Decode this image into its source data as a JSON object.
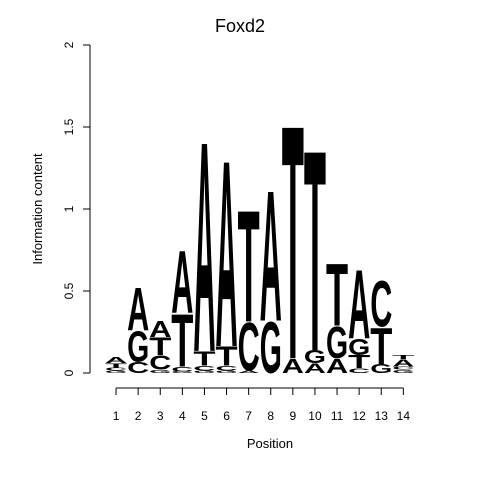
{
  "chart_data": {
    "type": "sequence-logo",
    "title": "Foxd2",
    "xlabel": "Position",
    "ylabel": "Information content",
    "ylim": [
      0,
      2
    ],
    "yticks": [
      "0",
      "0.5",
      "1",
      "1.5",
      "2"
    ],
    "yticks_values": [
      0,
      0.5,
      1,
      1.5,
      2
    ],
    "positions": [
      "1",
      "2",
      "3",
      "4",
      "5",
      "6",
      "7",
      "8",
      "9",
      "10",
      "11",
      "12",
      "13",
      "14"
    ],
    "colors": {
      "A": "#00ee00",
      "C": "#0000ee",
      "G": "#eeaa00",
      "T": "#ee0000"
    },
    "stacks": [
      [
        {
          "b": "G",
          "h": 0.015
        },
        {
          "b": "C",
          "h": 0.02
        },
        {
          "b": "T",
          "h": 0.025
        },
        {
          "b": "A",
          "h": 0.035
        }
      ],
      [
        {
          "b": "C",
          "h": 0.07
        },
        {
          "b": "G",
          "h": 0.19
        },
        {
          "b": "A",
          "h": 0.27
        }
      ],
      [
        {
          "b": "G",
          "h": 0.02
        },
        {
          "b": "C",
          "h": 0.09
        },
        {
          "b": "T",
          "h": 0.11
        },
        {
          "b": "A",
          "h": 0.1
        }
      ],
      [
        {
          "b": "G",
          "h": 0.01
        },
        {
          "b": "C",
          "h": 0.03
        },
        {
          "b": "T",
          "h": 0.33
        },
        {
          "b": "A",
          "h": 0.39
        }
      ],
      [
        {
          "b": "G",
          "h": 0.015
        },
        {
          "b": "C",
          "h": 0.03
        },
        {
          "b": "T",
          "h": 0.09
        },
        {
          "b": "A",
          "h": 1.32
        }
      ],
      [
        {
          "b": "G",
          "h": 0.015
        },
        {
          "b": "C",
          "h": 0.03
        },
        {
          "b": "T",
          "h": 0.12
        },
        {
          "b": "A",
          "h": 1.17
        }
      ],
      [
        {
          "b": "A",
          "h": 0.015
        },
        {
          "b": "C",
          "h": 0.3
        },
        {
          "b": "T",
          "h": 0.7
        }
      ],
      [
        {
          "b": "G",
          "h": 0.32
        },
        {
          "b": "A",
          "h": 0.82
        }
      ],
      [
        {
          "b": "A",
          "h": 0.09
        },
        {
          "b": "T",
          "h": 1.47
        }
      ],
      [
        {
          "b": "A",
          "h": 0.06
        },
        {
          "b": "G",
          "h": 0.08
        },
        {
          "b": "T",
          "h": 1.26
        }
      ],
      [
        {
          "b": "A",
          "h": 0.09
        },
        {
          "b": "G",
          "h": 0.2
        },
        {
          "b": "T",
          "h": 0.39
        }
      ],
      [
        {
          "b": "C",
          "h": 0.03
        },
        {
          "b": "T",
          "h": 0.08
        },
        {
          "b": "G",
          "h": 0.1
        },
        {
          "b": "A",
          "h": 0.43
        }
      ],
      [
        {
          "b": "G",
          "h": 0.055
        },
        {
          "b": "T",
          "h": 0.23
        },
        {
          "b": "C",
          "h": 0.29
        }
      ],
      [
        {
          "b": "G",
          "h": 0.02
        },
        {
          "b": "C",
          "h": 0.02
        },
        {
          "b": "A",
          "h": 0.045
        },
        {
          "b": "T",
          "h": 0.025
        }
      ]
    ]
  }
}
